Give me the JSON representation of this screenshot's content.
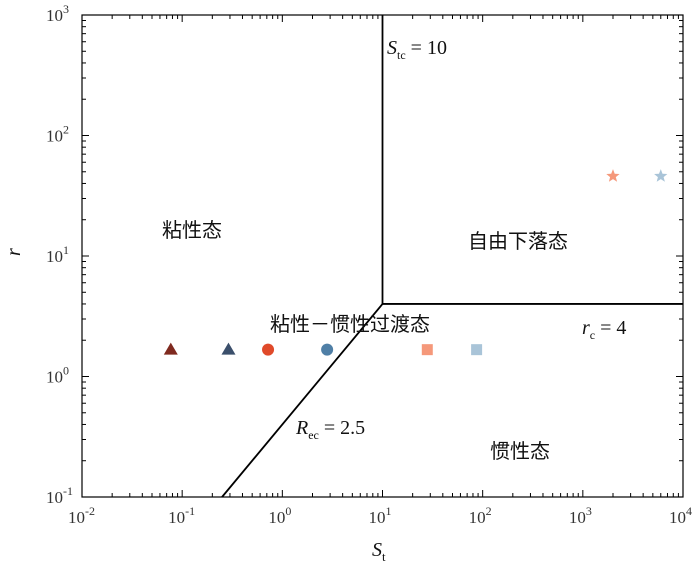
{
  "chart_data": {
    "type": "scatter",
    "x_scale": "log",
    "y_scale": "log",
    "xlim": [
      0.01,
      10000
    ],
    "ylim": [
      0.1,
      1000
    ],
    "xlabel": "S",
    "xlabel_sub": "t",
    "ylabel": "r",
    "x_tick_labels": [
      {
        "base": "10",
        "exp": "-2"
      },
      {
        "base": "10",
        "exp": "-1"
      },
      {
        "base": "10",
        "exp": "0"
      },
      {
        "base": "10",
        "exp": "1"
      },
      {
        "base": "10",
        "exp": "2"
      },
      {
        "base": "10",
        "exp": "3"
      },
      {
        "base": "10",
        "exp": "4"
      }
    ],
    "y_tick_labels": [
      {
        "base": "10",
        "exp": "-1"
      },
      {
        "base": "10",
        "exp": "0"
      },
      {
        "base": "10",
        "exp": "1"
      },
      {
        "base": "10",
        "exp": "2"
      },
      {
        "base": "10",
        "exp": "3"
      }
    ],
    "grid": false,
    "boundaries": [
      {
        "label_main": "S",
        "label_sub": "tc",
        "label_rest": " = 10",
        "points": [
          [
            10,
            1000
          ],
          [
            10,
            4
          ]
        ]
      },
      {
        "label_main": "r",
        "label_sub": "c",
        "label_rest": " = 4",
        "points": [
          [
            10,
            4
          ],
          [
            10000,
            4
          ]
        ]
      },
      {
        "label_main": "R",
        "label_sub": "ec",
        "label_rest": " = 2.5",
        "points": [
          [
            10,
            4
          ],
          [
            0.25,
            0.1
          ]
        ]
      }
    ],
    "regions": [
      "粘性态",
      "自由下落态",
      "粘性－惯性过渡态",
      "惯性态"
    ],
    "points": [
      {
        "x": 0.077,
        "y": 1.67,
        "marker": "triangle",
        "color": "#7f2a1f"
      },
      {
        "x": 0.29,
        "y": 1.67,
        "marker": "triangle",
        "color": "#3b4f6b"
      },
      {
        "x": 0.72,
        "y": 1.67,
        "marker": "circle",
        "color": "#e04a2a"
      },
      {
        "x": 2.8,
        "y": 1.67,
        "marker": "circle",
        "color": "#4f7fa6"
      },
      {
        "x": 28,
        "y": 1.67,
        "marker": "square",
        "color": "#f5987a"
      },
      {
        "x": 87,
        "y": 1.67,
        "marker": "square",
        "color": "#a9c4d8"
      },
      {
        "x": 2000,
        "y": 46,
        "marker": "star",
        "color": "#f5987a"
      },
      {
        "x": 6000,
        "y": 46,
        "marker": "star",
        "color": "#a9c4d8"
      }
    ]
  }
}
